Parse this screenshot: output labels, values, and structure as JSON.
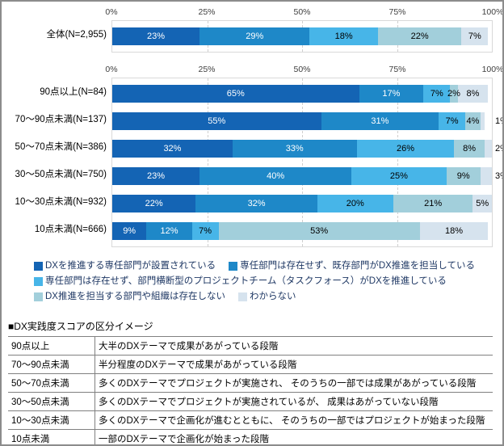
{
  "chart_data": {
    "type": "bar",
    "stacked": true,
    "orientation": "horizontal",
    "unit": "%",
    "axis": {
      "ticks": [
        "0%",
        "25%",
        "50%",
        "75%",
        "100%"
      ],
      "range": [
        0,
        100
      ],
      "gridlines_at": [
        25,
        50,
        75
      ]
    },
    "segment_colors": [
      "#1464B4",
      "#1E88C8",
      "#47B5E8",
      "#A2CFDB",
      "#D6E3EE"
    ],
    "label_colors": [
      "#ffffff",
      "#ffffff",
      "#000000",
      "#000000",
      "#000000"
    ],
    "legend": [
      {
        "label": "DXを推進する専任部門が設置されている"
      },
      {
        "label": "専任部門は存在せず、既存部門がDX推進を担当している"
      },
      {
        "label": "専任部門は存在せず、部門横断型のプロジェクトチーム（タスクフォース）がDXを推進している"
      },
      {
        "label": "DX推進を担当する部門や組織は存在しない"
      },
      {
        "label": "わからない"
      }
    ],
    "legend_rows": [
      [
        0,
        1
      ],
      [
        2
      ],
      [
        3,
        4
      ]
    ],
    "charts": [
      {
        "rows": [
          {
            "label": "全体(N=2,955)",
            "values": [
              23,
              29,
              18,
              22,
              7
            ],
            "last_outside": false
          }
        ]
      },
      {
        "rows": [
          {
            "label": "90点以上(N=84)",
            "values": [
              65,
              17,
              7,
              2,
              8
            ],
            "last_outside": false
          },
          {
            "label": "70～90点未満(N=137)",
            "values": [
              55,
              31,
              7,
              4,
              1
            ],
            "last_outside": true
          },
          {
            "label": "50～70点未満(N=386)",
            "values": [
              32,
              33,
              26,
              8,
              2
            ],
            "last_outside": true
          },
          {
            "label": "30～50点未満(N=750)",
            "values": [
              23,
              40,
              25,
              9,
              3
            ],
            "last_outside": true
          },
          {
            "label": "10～30点未満(N=932)",
            "values": [
              22,
              32,
              20,
              21,
              5
            ],
            "last_outside": false
          },
          {
            "label": "10点未満(N=666)",
            "values": [
              9,
              12,
              7,
              53,
              18
            ],
            "last_outside": false
          }
        ]
      }
    ]
  },
  "score_table": {
    "title": "■DX実践度スコアの区分イメージ",
    "rows": [
      {
        "score": "90点以上",
        "desc": "大半のDXテーマで成果があがっている段階"
      },
      {
        "score": "70～90点未満",
        "desc": "半分程度のDXテーマで成果があがっている段階"
      },
      {
        "score": "50～70点未満",
        "desc": "多くのDXテーマでプロジェクトが実施され、 そのうちの一部では成果があがっている段階"
      },
      {
        "score": "30～50点未満",
        "desc": "多くのDXテーマでプロジェクトが実施されているが、 成果はあがっていない段階"
      },
      {
        "score": "10～30点未満",
        "desc": "多くのDXテーマで企画化が進むとともに、 そのうちの一部ではプロジェクトが始まった段階"
      },
      {
        "score": "10点未満",
        "desc": "一部のDXテーマで企画化が始まった段階"
      }
    ]
  }
}
